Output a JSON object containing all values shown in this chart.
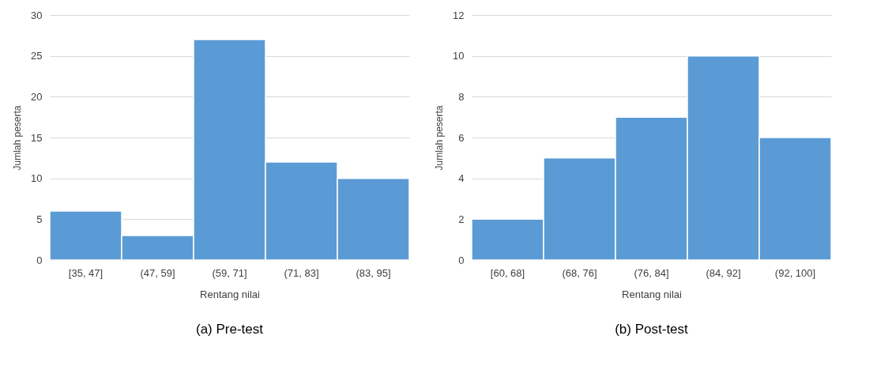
{
  "chart_data": [
    {
      "type": "bar",
      "title": "(a) Pre-test",
      "xlabel": "Rentang nilai",
      "ylabel": "Jumlah peserta",
      "categories": [
        "[35, 47]",
        "(47, 59]",
        "(59, 71]",
        "(71, 83]",
        "(83, 95]"
      ],
      "values": [
        6,
        3,
        27,
        12,
        10
      ],
      "color": "#5b9bd5",
      "ylim": [
        0,
        30
      ],
      "yticks": [
        0,
        5,
        10,
        15,
        20,
        25,
        30
      ],
      "grid": "y"
    },
    {
      "type": "bar",
      "title": "(b) Post-test",
      "xlabel": "Rentang nilai",
      "ylabel": "Jumlah peserta",
      "categories": [
        "[60, 68]",
        "(68, 76]",
        "(76, 84]",
        "(84, 92]",
        "(92, 100]"
      ],
      "values": [
        2,
        5,
        7,
        10,
        6
      ],
      "color": "#5b9bd5",
      "ylim": [
        0,
        12
      ],
      "yticks": [
        0,
        2,
        4,
        6,
        8,
        10,
        12
      ],
      "grid": "y"
    }
  ]
}
